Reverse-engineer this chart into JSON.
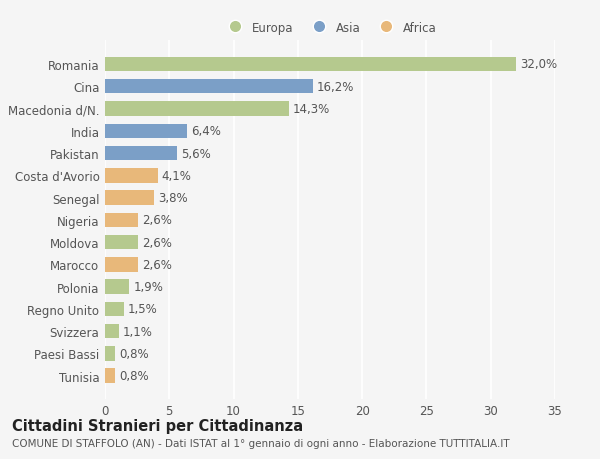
{
  "countries": [
    "Romania",
    "Cina",
    "Macedonia d/N.",
    "India",
    "Pakistan",
    "Costa d'Avorio",
    "Senegal",
    "Nigeria",
    "Moldova",
    "Marocco",
    "Polonia",
    "Regno Unito",
    "Svizzera",
    "Paesi Bassi",
    "Tunisia"
  ],
  "values": [
    32.0,
    16.2,
    14.3,
    6.4,
    5.6,
    4.1,
    3.8,
    2.6,
    2.6,
    2.6,
    1.9,
    1.5,
    1.1,
    0.8,
    0.8
  ],
  "labels": [
    "32,0%",
    "16,2%",
    "14,3%",
    "6,4%",
    "5,6%",
    "4,1%",
    "3,8%",
    "2,6%",
    "2,6%",
    "2,6%",
    "1,9%",
    "1,5%",
    "1,1%",
    "0,8%",
    "0,8%"
  ],
  "continent": [
    "Europa",
    "Asia",
    "Europa",
    "Asia",
    "Asia",
    "Africa",
    "Africa",
    "Africa",
    "Europa",
    "Africa",
    "Europa",
    "Europa",
    "Europa",
    "Europa",
    "Africa"
  ],
  "colors": {
    "Europa": "#b5c98e",
    "Asia": "#7b9fc7",
    "Africa": "#e8b87a"
  },
  "xlim": [
    0,
    35
  ],
  "xticks": [
    0,
    5,
    10,
    15,
    20,
    25,
    30,
    35
  ],
  "background_color": "#f5f5f5",
  "grid_color": "#ffffff",
  "title": "Cittadini Stranieri per Cittadinanza",
  "subtitle": "COMUNE DI STAFFOLO (AN) - Dati ISTAT al 1° gennaio di ogni anno - Elaborazione TUTTITALIA.IT",
  "bar_height": 0.65,
  "label_fontsize": 8.5,
  "tick_fontsize": 8.5,
  "title_fontsize": 10.5,
  "subtitle_fontsize": 7.5
}
